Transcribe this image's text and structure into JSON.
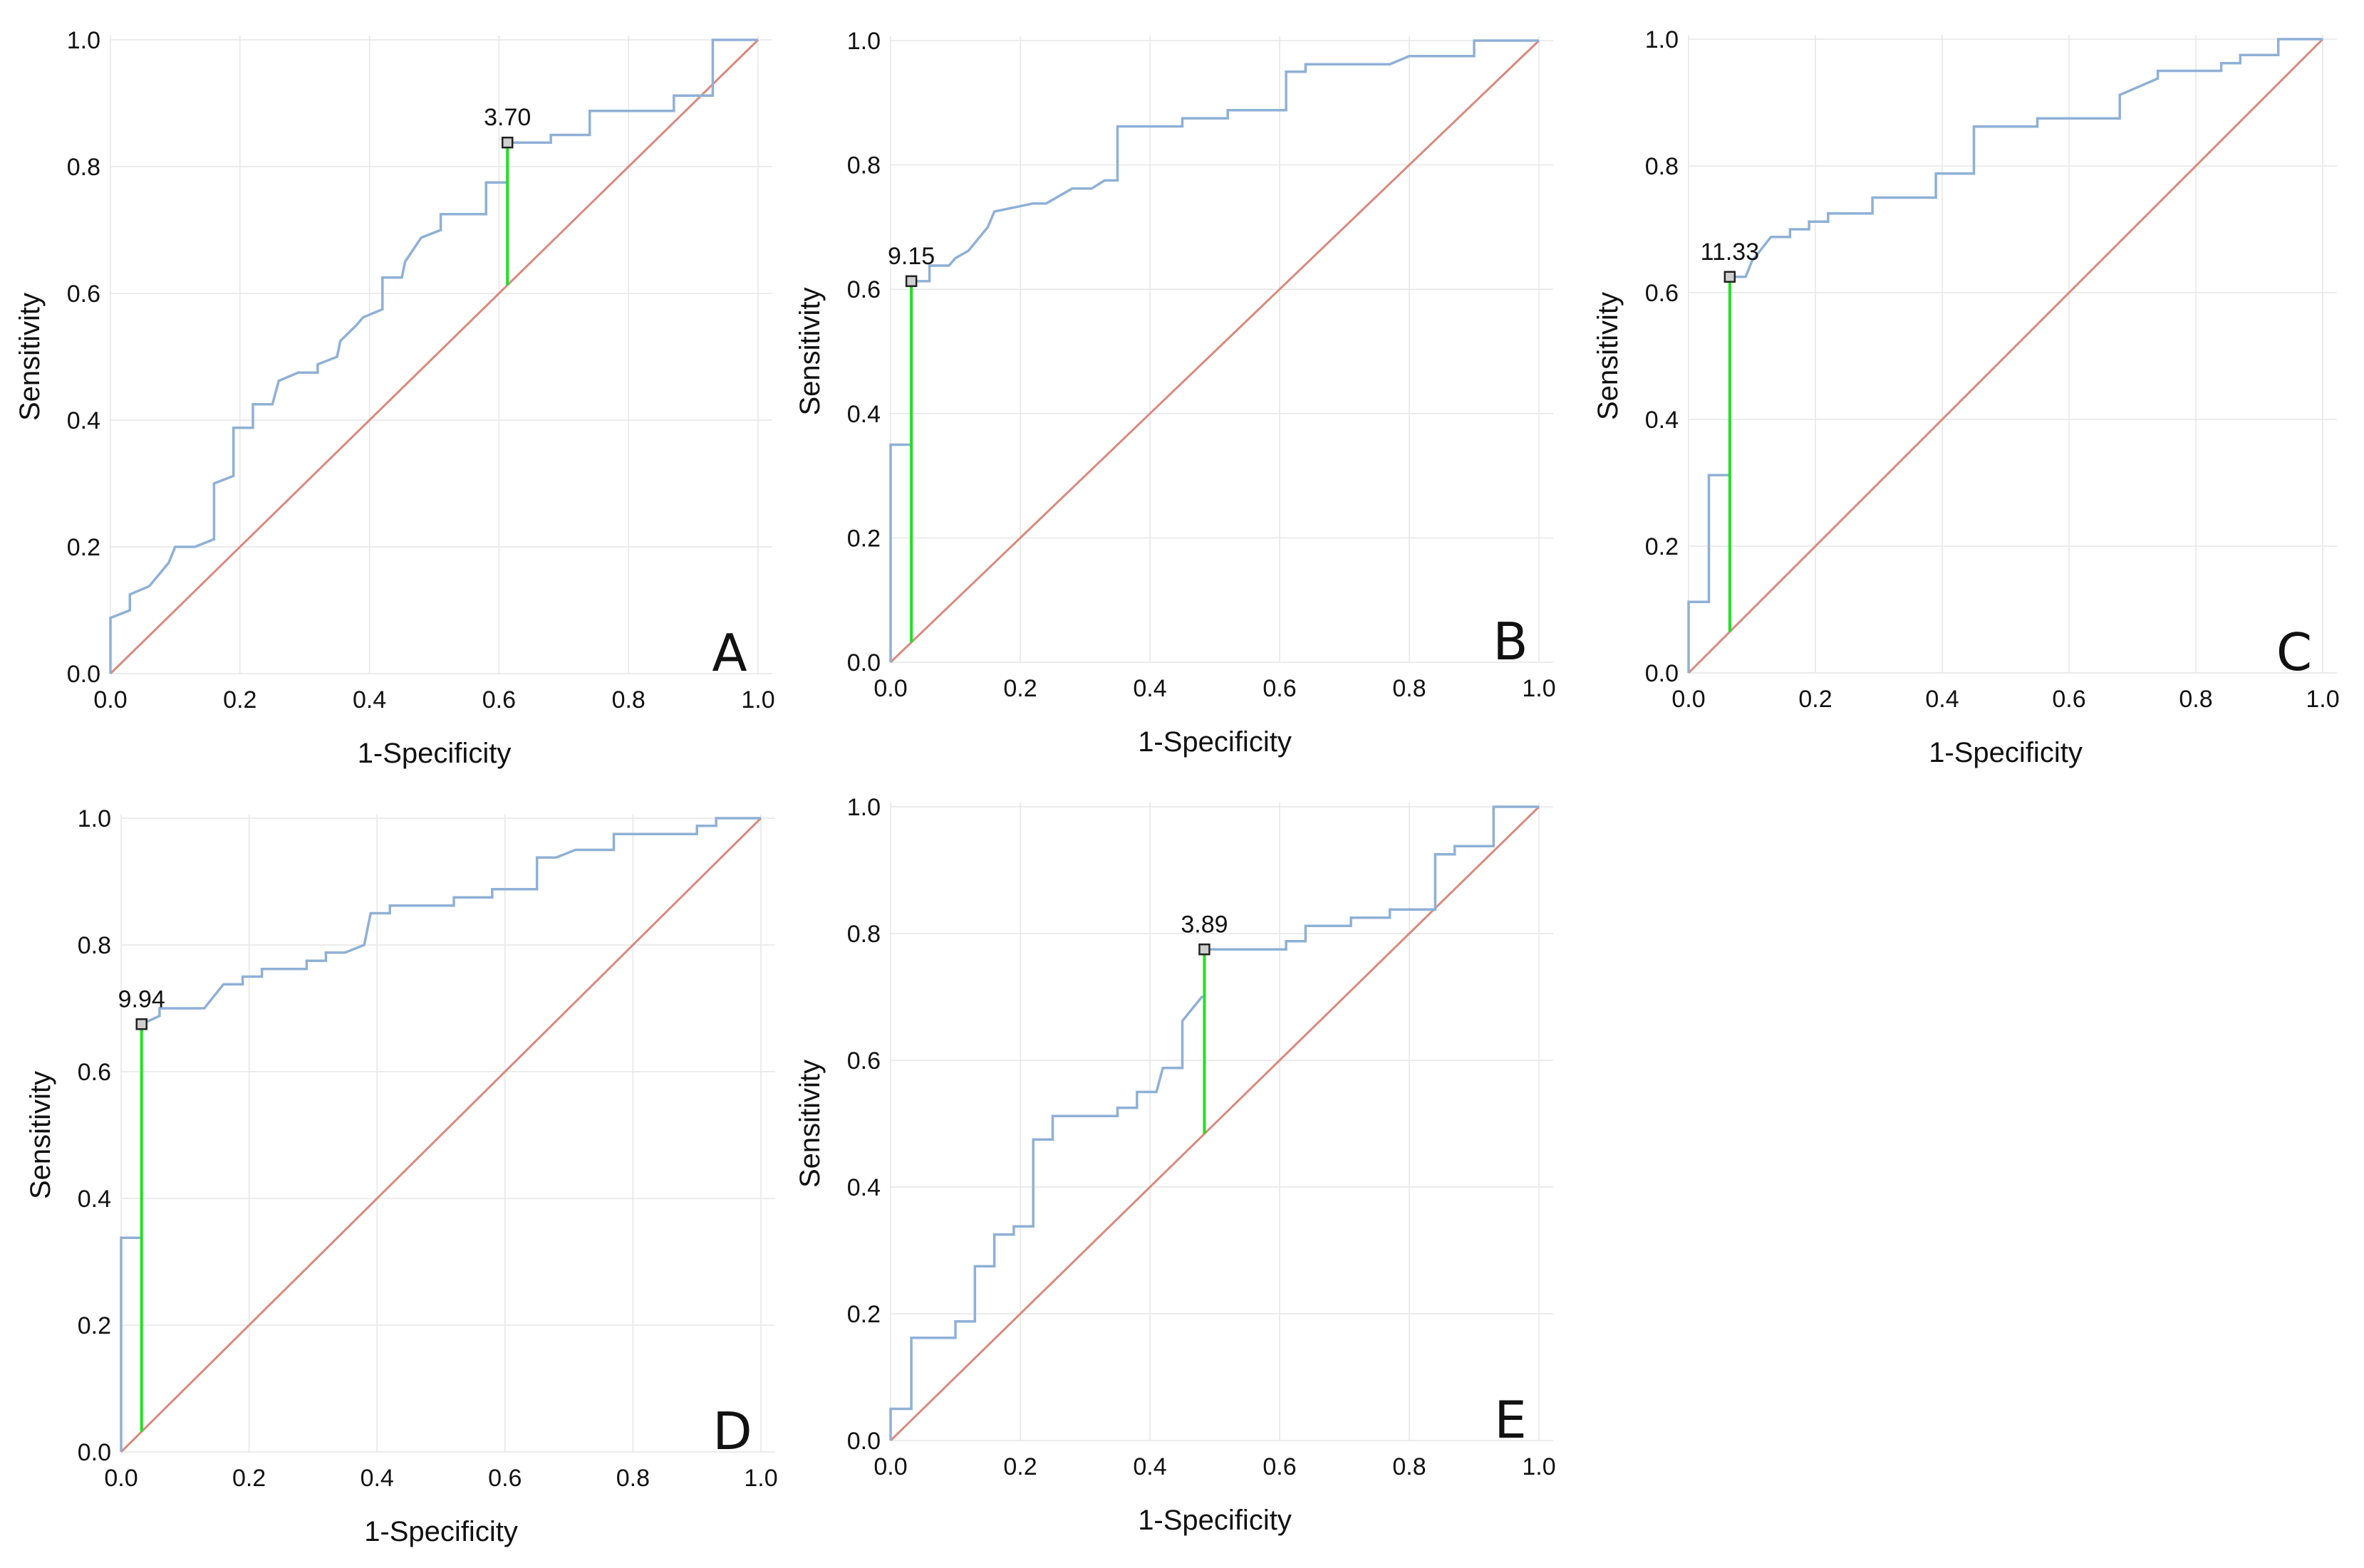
{
  "colors": {
    "roc": "#8FB0D6",
    "diagonal": "#D9897E",
    "cutoff_line": "#22E022",
    "grid": "#E6E6E6",
    "text": "#111111"
  },
  "chart_data": [
    {
      "type": "line",
      "panel": "A",
      "xlabel": "1-Specificity",
      "ylabel": "Sensitivity",
      "xlim": [
        0,
        1
      ],
      "ylim": [
        0,
        1
      ],
      "ticks": [
        "0.0",
        "0.2",
        "0.4",
        "0.6",
        "0.8",
        "1.0"
      ],
      "cutoff": {
        "label": "3.70",
        "x": 0.613,
        "y": 0.838
      },
      "roc": [
        [
          0,
          0
        ],
        [
          0,
          0.088
        ],
        [
          0.03,
          0.1
        ],
        [
          0.03,
          0.125
        ],
        [
          0.06,
          0.138
        ],
        [
          0.09,
          0.175
        ],
        [
          0.1,
          0.2
        ],
        [
          0.13,
          0.2
        ],
        [
          0.16,
          0.212
        ],
        [
          0.16,
          0.3
        ],
        [
          0.19,
          0.312
        ],
        [
          0.19,
          0.388
        ],
        [
          0.22,
          0.388
        ],
        [
          0.22,
          0.425
        ],
        [
          0.25,
          0.425
        ],
        [
          0.26,
          0.462
        ],
        [
          0.29,
          0.475
        ],
        [
          0.32,
          0.475
        ],
        [
          0.32,
          0.488
        ],
        [
          0.35,
          0.5
        ],
        [
          0.355,
          0.525
        ],
        [
          0.38,
          0.55
        ],
        [
          0.39,
          0.562
        ],
        [
          0.42,
          0.575
        ],
        [
          0.42,
          0.625
        ],
        [
          0.45,
          0.625
        ],
        [
          0.455,
          0.65
        ],
        [
          0.48,
          0.688
        ],
        [
          0.51,
          0.7
        ],
        [
          0.51,
          0.725
        ],
        [
          0.58,
          0.725
        ],
        [
          0.58,
          0.775
        ],
        [
          0.613,
          0.775
        ],
        [
          0.613,
          0.838
        ],
        [
          0.61,
          0.838
        ],
        [
          0.68,
          0.838
        ],
        [
          0.68,
          0.85
        ],
        [
          0.74,
          0.85
        ],
        [
          0.74,
          0.888
        ],
        [
          0.87,
          0.888
        ],
        [
          0.87,
          0.912
        ],
        [
          0.93,
          0.912
        ],
        [
          0.93,
          1
        ],
        [
          1,
          1
        ]
      ]
    },
    {
      "type": "line",
      "panel": "B",
      "xlabel": "1-Specificity",
      "ylabel": "Sensitivity",
      "xlim": [
        0,
        1
      ],
      "ylim": [
        0,
        1
      ],
      "ticks": [
        "0.0",
        "0.2",
        "0.4",
        "0.6",
        "0.8",
        "1.0"
      ],
      "cutoff": {
        "label": "9.15",
        "x": 0.032,
        "y": 0.613
      },
      "roc": [
        [
          0,
          0
        ],
        [
          0,
          0.35
        ],
        [
          0.032,
          0.35
        ],
        [
          0.032,
          0.613
        ],
        [
          0.06,
          0.613
        ],
        [
          0.06,
          0.638
        ],
        [
          0.09,
          0.638
        ],
        [
          0.1,
          0.65
        ],
        [
          0.12,
          0.662
        ],
        [
          0.15,
          0.7
        ],
        [
          0.16,
          0.725
        ],
        [
          0.22,
          0.738
        ],
        [
          0.24,
          0.738
        ],
        [
          0.26,
          0.75
        ],
        [
          0.28,
          0.762
        ],
        [
          0.31,
          0.762
        ],
        [
          0.33,
          0.775
        ],
        [
          0.35,
          0.775
        ],
        [
          0.35,
          0.862
        ],
        [
          0.45,
          0.862
        ],
        [
          0.45,
          0.875
        ],
        [
          0.52,
          0.875
        ],
        [
          0.52,
          0.888
        ],
        [
          0.61,
          0.888
        ],
        [
          0.61,
          0.95
        ],
        [
          0.64,
          0.95
        ],
        [
          0.64,
          0.962
        ],
        [
          0.77,
          0.962
        ],
        [
          0.8,
          0.975
        ],
        [
          0.9,
          0.975
        ],
        [
          0.9,
          1
        ],
        [
          1,
          1
        ]
      ]
    },
    {
      "type": "line",
      "panel": "C",
      "xlabel": "1-Specificity",
      "ylabel": "Sensitivity",
      "xlim": [
        0,
        1
      ],
      "ylim": [
        0,
        1
      ],
      "ticks": [
        "0.0",
        "0.2",
        "0.4",
        "0.6",
        "0.8",
        "1.0"
      ],
      "cutoff": {
        "label": "11.33",
        "x": 0.065,
        "y": 0.625
      },
      "roc": [
        [
          0,
          0
        ],
        [
          0,
          0.112
        ],
        [
          0.032,
          0.112
        ],
        [
          0.032,
          0.312
        ],
        [
          0.065,
          0.312
        ],
        [
          0.065,
          0.625
        ],
        [
          0.09,
          0.625
        ],
        [
          0.1,
          0.65
        ],
        [
          0.13,
          0.688
        ],
        [
          0.16,
          0.688
        ],
        [
          0.16,
          0.7
        ],
        [
          0.19,
          0.7
        ],
        [
          0.19,
          0.712
        ],
        [
          0.22,
          0.712
        ],
        [
          0.22,
          0.725
        ],
        [
          0.29,
          0.725
        ],
        [
          0.29,
          0.75
        ],
        [
          0.39,
          0.75
        ],
        [
          0.39,
          0.788
        ],
        [
          0.45,
          0.788
        ],
        [
          0.45,
          0.862
        ],
        [
          0.55,
          0.862
        ],
        [
          0.55,
          0.875
        ],
        [
          0.68,
          0.875
        ],
        [
          0.68,
          0.912
        ],
        [
          0.74,
          0.938
        ],
        [
          0.74,
          0.95
        ],
        [
          0.84,
          0.95
        ],
        [
          0.84,
          0.962
        ],
        [
          0.87,
          0.962
        ],
        [
          0.87,
          0.975
        ],
        [
          0.93,
          0.975
        ],
        [
          0.93,
          1
        ],
        [
          1,
          1
        ]
      ]
    },
    {
      "type": "line",
      "panel": "D",
      "xlabel": "1-Specificity",
      "ylabel": "Sensitivity",
      "xlim": [
        0,
        1
      ],
      "ylim": [
        0,
        1
      ],
      "ticks": [
        "0.0",
        "0.2",
        "0.4",
        "0.6",
        "0.8",
        "1.0"
      ],
      "cutoff": {
        "label": "9.94",
        "x": 0.032,
        "y": 0.675
      },
      "roc": [
        [
          0,
          0
        ],
        [
          0,
          0.338
        ],
        [
          0.032,
          0.338
        ],
        [
          0.032,
          0.675
        ],
        [
          0.06,
          0.688
        ],
        [
          0.06,
          0.7
        ],
        [
          0.13,
          0.7
        ],
        [
          0.16,
          0.738
        ],
        [
          0.19,
          0.738
        ],
        [
          0.19,
          0.75
        ],
        [
          0.22,
          0.75
        ],
        [
          0.22,
          0.762
        ],
        [
          0.29,
          0.762
        ],
        [
          0.29,
          0.775
        ],
        [
          0.32,
          0.775
        ],
        [
          0.32,
          0.788
        ],
        [
          0.35,
          0.788
        ],
        [
          0.38,
          0.8
        ],
        [
          0.39,
          0.85
        ],
        [
          0.42,
          0.85
        ],
        [
          0.42,
          0.862
        ],
        [
          0.52,
          0.862
        ],
        [
          0.52,
          0.875
        ],
        [
          0.58,
          0.875
        ],
        [
          0.58,
          0.888
        ],
        [
          0.65,
          0.888
        ],
        [
          0.65,
          0.938
        ],
        [
          0.68,
          0.938
        ],
        [
          0.71,
          0.95
        ],
        [
          0.77,
          0.95
        ],
        [
          0.77,
          0.975
        ],
        [
          0.9,
          0.975
        ],
        [
          0.9,
          0.988
        ],
        [
          0.93,
          0.988
        ],
        [
          0.93,
          1
        ],
        [
          1,
          1
        ]
      ]
    },
    {
      "type": "line",
      "panel": "E",
      "xlabel": "1-Specificity",
      "ylabel": "Sensitivity",
      "xlim": [
        0,
        1
      ],
      "ylim": [
        0,
        1
      ],
      "ticks": [
        "0.0",
        "0.2",
        "0.4",
        "0.6",
        "0.8",
        "1.0"
      ],
      "cutoff": {
        "label": "3.89",
        "x": 0.484,
        "y": 0.775
      },
      "roc": [
        [
          0,
          0
        ],
        [
          0,
          0.05
        ],
        [
          0.032,
          0.05
        ],
        [
          0.032,
          0.162
        ],
        [
          0.1,
          0.162
        ],
        [
          0.1,
          0.188
        ],
        [
          0.13,
          0.188
        ],
        [
          0.13,
          0.275
        ],
        [
          0.16,
          0.275
        ],
        [
          0.16,
          0.325
        ],
        [
          0.19,
          0.325
        ],
        [
          0.19,
          0.338
        ],
        [
          0.22,
          0.338
        ],
        [
          0.22,
          0.475
        ],
        [
          0.25,
          0.475
        ],
        [
          0.25,
          0.512
        ],
        [
          0.35,
          0.512
        ],
        [
          0.35,
          0.525
        ],
        [
          0.38,
          0.525
        ],
        [
          0.38,
          0.55
        ],
        [
          0.41,
          0.55
        ],
        [
          0.42,
          0.588
        ],
        [
          0.45,
          0.588
        ],
        [
          0.45,
          0.662
        ],
        [
          0.48,
          0.7
        ],
        [
          0.484,
          0.7
        ],
        [
          0.484,
          0.775
        ],
        [
          0.61,
          0.775
        ],
        [
          0.61,
          0.788
        ],
        [
          0.64,
          0.788
        ],
        [
          0.64,
          0.812
        ],
        [
          0.71,
          0.812
        ],
        [
          0.71,
          0.825
        ],
        [
          0.77,
          0.825
        ],
        [
          0.77,
          0.838
        ],
        [
          0.84,
          0.838
        ],
        [
          0.84,
          0.925
        ],
        [
          0.87,
          0.925
        ],
        [
          0.87,
          0.938
        ],
        [
          0.93,
          0.938
        ],
        [
          0.93,
          1
        ],
        [
          1,
          1
        ]
      ]
    }
  ]
}
